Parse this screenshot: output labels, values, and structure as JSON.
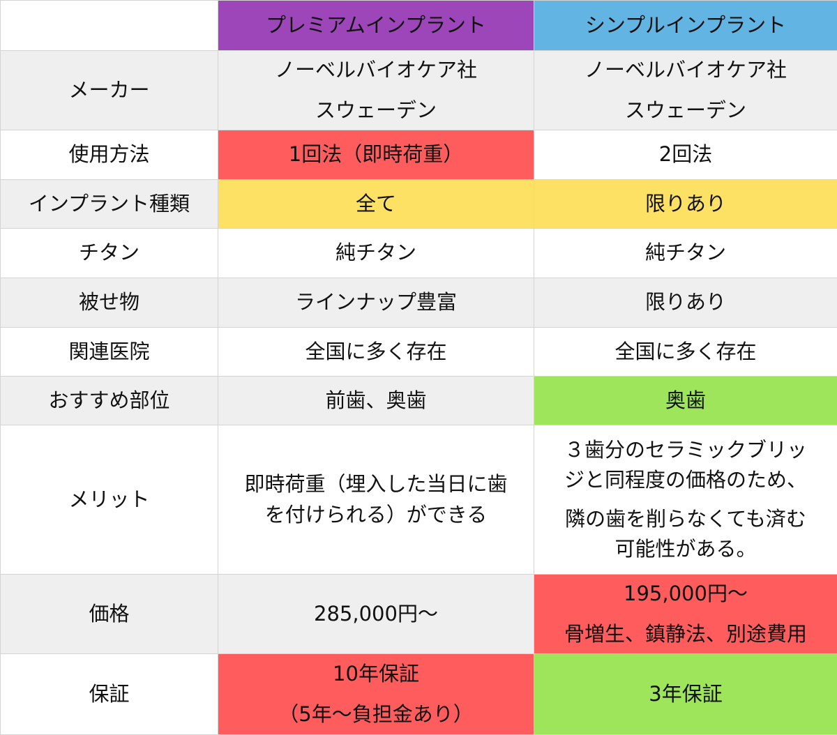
{
  "colors": {
    "premium_header": "#9d46b9",
    "simple_header": "#62b4e2",
    "red": "#ff5d5d",
    "yellow": "#fde165",
    "green": "#9ee55b",
    "row_gray": "#efefef"
  },
  "headers": [
    "",
    "プレミアムインプラント",
    "シンプルインプラント"
  ],
  "rows": [
    {
      "label": "メーカー",
      "premium": [
        "ノーベルバイオケア社",
        "スウェーデン"
      ],
      "simple": [
        "ノーベルバイオケア社",
        "スウェーデン"
      ]
    },
    {
      "label": "使用方法",
      "premium": [
        "1回法（即時荷重）"
      ],
      "simple": [
        "2回法"
      ]
    },
    {
      "label": "インプラント種類",
      "premium": [
        "全て"
      ],
      "simple": [
        "限りあり"
      ]
    },
    {
      "label": "チタン",
      "premium": [
        "純チタン"
      ],
      "simple": [
        "純チタン"
      ]
    },
    {
      "label": "被せ物",
      "premium": [
        "ラインナップ豊富"
      ],
      "simple": [
        "限りあり"
      ]
    },
    {
      "label": "関連医院",
      "premium": [
        "全国に多く存在"
      ],
      "simple": [
        "全国に多く存在"
      ]
    },
    {
      "label": "おすすめ部位",
      "premium": [
        "前歯、奥歯"
      ],
      "simple": [
        "奥歯"
      ]
    },
    {
      "label": "メリット",
      "premium": [
        "即時荷重（埋入した当日に歯",
        "を付けられる）ができる"
      ],
      "simple": [
        "３歯分のセラミックブリッ",
        "ジと同程度の価格のため、",
        "隣の歯を削らなくても済む",
        "可能性がある。"
      ]
    },
    {
      "label": "価格",
      "premium": [
        "285,000円〜"
      ],
      "simple": [
        "195,000円〜",
        "骨増生、鎮静法、別途費用"
      ]
    },
    {
      "label": "保証",
      "premium": [
        "10年保証",
        "（5年〜負担金あり）"
      ],
      "simple": [
        "3年保証"
      ]
    }
  ]
}
